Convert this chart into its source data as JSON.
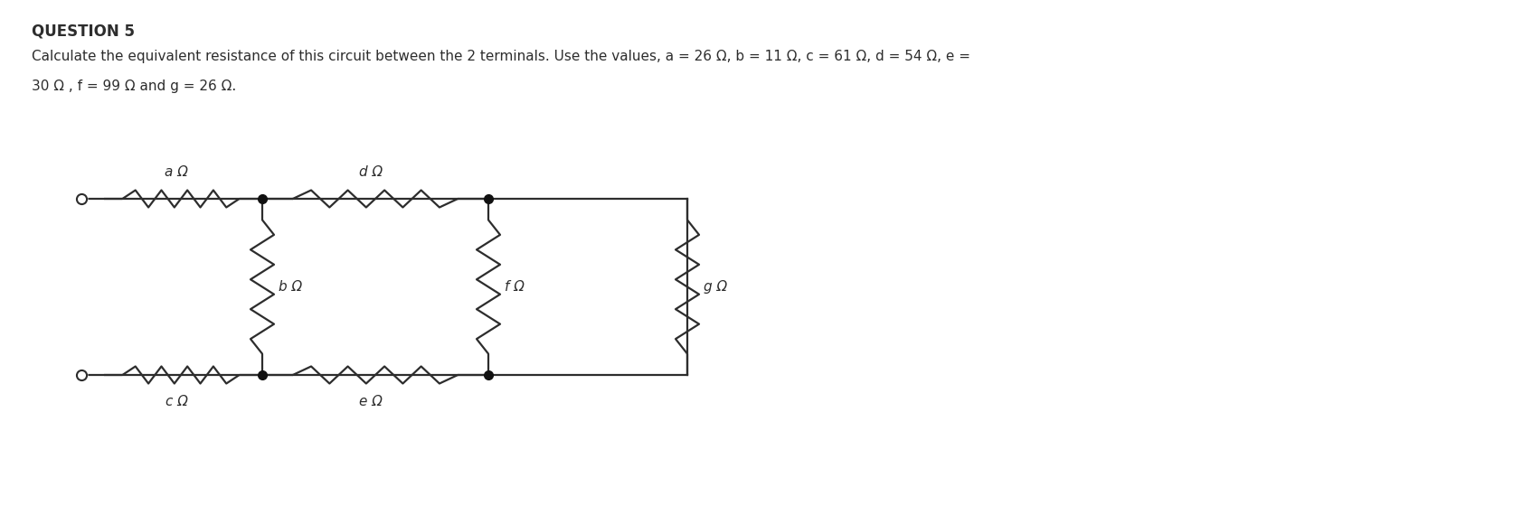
{
  "title": "QUESTION 5",
  "desc_line1": "Calculate the equivalent resistance of this circuit between the 2 terminals. Use the values, a = 26 Ω, b = 11 Ω, c = 61 Ω, d = 54 Ω, e =",
  "desc_line2": "30 Ω , f = 99 Ω and g = 26 Ω.",
  "bg_color": "#ffffff",
  "line_color": "#2d2d2d",
  "dot_color": "#111111",
  "label_color": "#2d2d2d",
  "title_fontsize": 12,
  "desc_fontsize": 11,
  "label_fontsize": 11,
  "fig_width": 16.74,
  "fig_height": 5.7
}
